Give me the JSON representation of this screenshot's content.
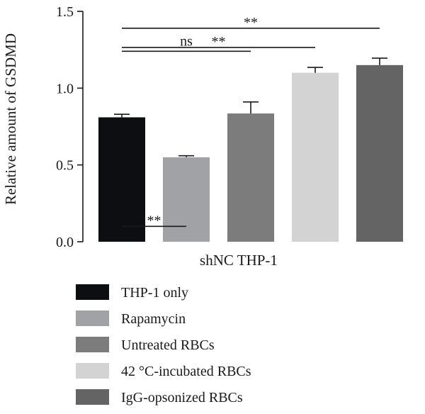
{
  "chart_data": {
    "type": "bar",
    "title": "",
    "ylabel": "Relative amount of GSDMD",
    "xlabel": "",
    "ylim": [
      0,
      1.5
    ],
    "yticks": [
      "0.0",
      "0.5",
      "1.0",
      "1.5"
    ],
    "ytick_values": [
      0,
      0.5,
      1.0,
      1.5
    ],
    "category_label": "shNC THP-1",
    "grid": false,
    "legend_position": "bottom",
    "bars": [
      {
        "name": "THP-1 only",
        "value": 0.81,
        "error": 0.02,
        "color": "#0d0e11"
      },
      {
        "name": "Rapamycin",
        "value": 0.55,
        "error": 0.01,
        "color": "#a1a2a6"
      },
      {
        "name": "Untreated RBCs",
        "value": 0.835,
        "error": 0.075,
        "color": "#7c7c7c"
      },
      {
        "name": "42 °C-incubated RBCs",
        "value": 1.1,
        "error": 0.035,
        "color": "#d3d3d3"
      },
      {
        "name": "IgG-opsonized RBCs",
        "value": 1.15,
        "error": 0.045,
        "color": "#646464"
      }
    ],
    "comparisons": [
      {
        "from": 0,
        "to": 1,
        "label": "**",
        "level": 0.1
      },
      {
        "from": 0,
        "to": 2,
        "label": "ns",
        "level": 1.24
      },
      {
        "from": 0,
        "to": 3,
        "label": "**",
        "level": 1.265
      },
      {
        "from": 0,
        "to": 4,
        "label": "**",
        "level": 1.39
      }
    ]
  }
}
